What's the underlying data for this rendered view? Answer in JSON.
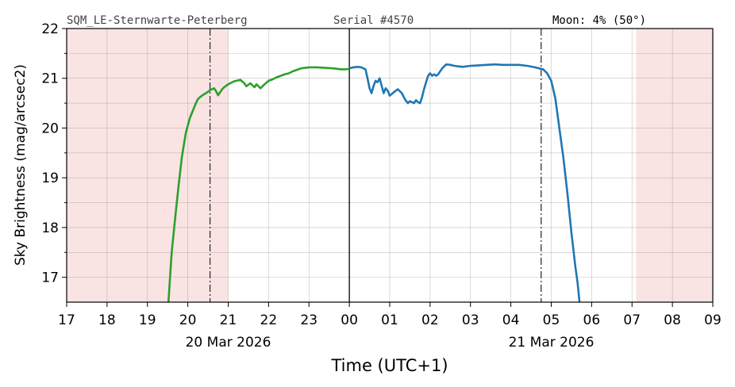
{
  "header": {
    "station": "SQM_LE-Sternwarte-Peterberg",
    "serial": "Serial #4570",
    "moon": "Moon: 4% (50°)"
  },
  "chart_data": {
    "type": "line",
    "xlabel": "Time (UTC+1)",
    "ylabel": "Sky Brightness (mag/arcsec2)",
    "xlim": [
      17,
      33
    ],
    "ylim": [
      16.5,
      22
    ],
    "grid": true,
    "x_tick_labels": [
      "17",
      "18",
      "19",
      "20",
      "21",
      "22",
      "23",
      "00",
      "01",
      "02",
      "03",
      "04",
      "05",
      "06",
      "07",
      "08",
      "09"
    ],
    "y_ticks": [
      17,
      18,
      19,
      20,
      21,
      22
    ],
    "date_labels": [
      {
        "x": 21,
        "text": "20 Mar 2026"
      },
      {
        "x": 29,
        "text": "21 Mar 2026"
      }
    ],
    "colors": {
      "evening": "#2ca02c",
      "morning": "#1f77b4",
      "daylight_shade": "#f9e3e3",
      "twilight_line": "#333333",
      "midnight_line": "#000000"
    },
    "shaded_regions": [
      [
        17,
        21
      ],
      [
        31.1,
        33
      ]
    ],
    "vlines": [
      {
        "x": 20.55,
        "style": "dashdot"
      },
      {
        "x": 24.0,
        "style": "solid"
      },
      {
        "x": 28.75,
        "style": "dashdot"
      }
    ],
    "series": [
      {
        "color": "#2ca02c",
        "x": [
          19.52,
          19.6,
          19.7,
          19.78,
          19.85,
          19.9,
          19.95,
          20.0,
          20.05,
          20.1,
          20.15,
          20.2,
          20.25,
          20.3,
          20.35,
          20.4,
          20.45,
          20.5,
          20.55,
          20.6,
          20.65,
          20.7,
          20.75,
          20.8,
          20.85,
          20.9,
          20.95,
          21.0,
          21.05,
          21.1,
          21.15,
          21.2,
          21.3,
          21.4,
          21.45,
          21.5,
          21.55,
          21.6,
          21.65,
          21.7,
          21.75,
          21.8,
          21.9,
          22.0,
          22.1,
          22.2,
          22.3,
          22.4,
          22.5,
          22.6,
          22.7,
          22.8,
          22.9,
          23.0,
          23.2,
          23.4,
          23.6,
          23.8,
          23.9,
          24.0
        ],
        "y": [
          16.5,
          17.5,
          18.3,
          18.9,
          19.4,
          19.65,
          19.9,
          20.05,
          20.2,
          20.3,
          20.4,
          20.5,
          20.58,
          20.62,
          20.65,
          20.68,
          20.7,
          20.73,
          20.76,
          20.78,
          20.8,
          20.74,
          20.66,
          20.72,
          20.78,
          20.82,
          20.85,
          20.88,
          20.9,
          20.92,
          20.94,
          20.95,
          20.97,
          20.9,
          20.84,
          20.87,
          20.9,
          20.86,
          20.82,
          20.88,
          20.84,
          20.8,
          20.88,
          20.95,
          20.98,
          21.02,
          21.05,
          21.08,
          21.1,
          21.14,
          21.17,
          21.2,
          21.21,
          21.22,
          21.22,
          21.21,
          21.2,
          21.18,
          21.18,
          21.19
        ]
      },
      {
        "color": "#1f77b4",
        "x": [
          24.0,
          24.1,
          24.2,
          24.3,
          24.4,
          24.45,
          24.5,
          24.55,
          24.6,
          24.65,
          24.7,
          24.75,
          24.8,
          24.85,
          24.9,
          24.95,
          25.0,
          25.1,
          25.2,
          25.3,
          25.35,
          25.4,
          25.45,
          25.5,
          25.55,
          25.6,
          25.65,
          25.7,
          25.75,
          25.8,
          25.85,
          25.9,
          25.95,
          26.0,
          26.05,
          26.1,
          26.15,
          26.2,
          26.3,
          26.4,
          26.5,
          26.6,
          26.7,
          26.8,
          27.0,
          27.2,
          27.4,
          27.6,
          27.8,
          28.0,
          28.2,
          28.4,
          28.6,
          28.7,
          28.8,
          28.9,
          29.0,
          29.1,
          29.2,
          29.3,
          29.4,
          29.5,
          29.6,
          29.65,
          29.7
        ],
        "y": [
          21.2,
          21.22,
          21.23,
          21.22,
          21.18,
          21.0,
          20.8,
          20.7,
          20.85,
          20.95,
          20.92,
          21.0,
          20.85,
          20.7,
          20.8,
          20.75,
          20.65,
          20.72,
          20.78,
          20.7,
          20.62,
          20.55,
          20.5,
          20.54,
          20.52,
          20.5,
          20.56,
          20.52,
          20.5,
          20.62,
          20.78,
          20.92,
          21.05,
          21.1,
          21.05,
          21.08,
          21.05,
          21.08,
          21.2,
          21.28,
          21.27,
          21.25,
          21.24,
          21.23,
          21.25,
          21.26,
          21.27,
          21.28,
          21.27,
          21.27,
          21.27,
          21.25,
          21.22,
          21.2,
          21.18,
          21.1,
          20.95,
          20.6,
          20.0,
          19.4,
          18.7,
          17.9,
          17.2,
          16.9,
          16.5
        ]
      }
    ]
  }
}
